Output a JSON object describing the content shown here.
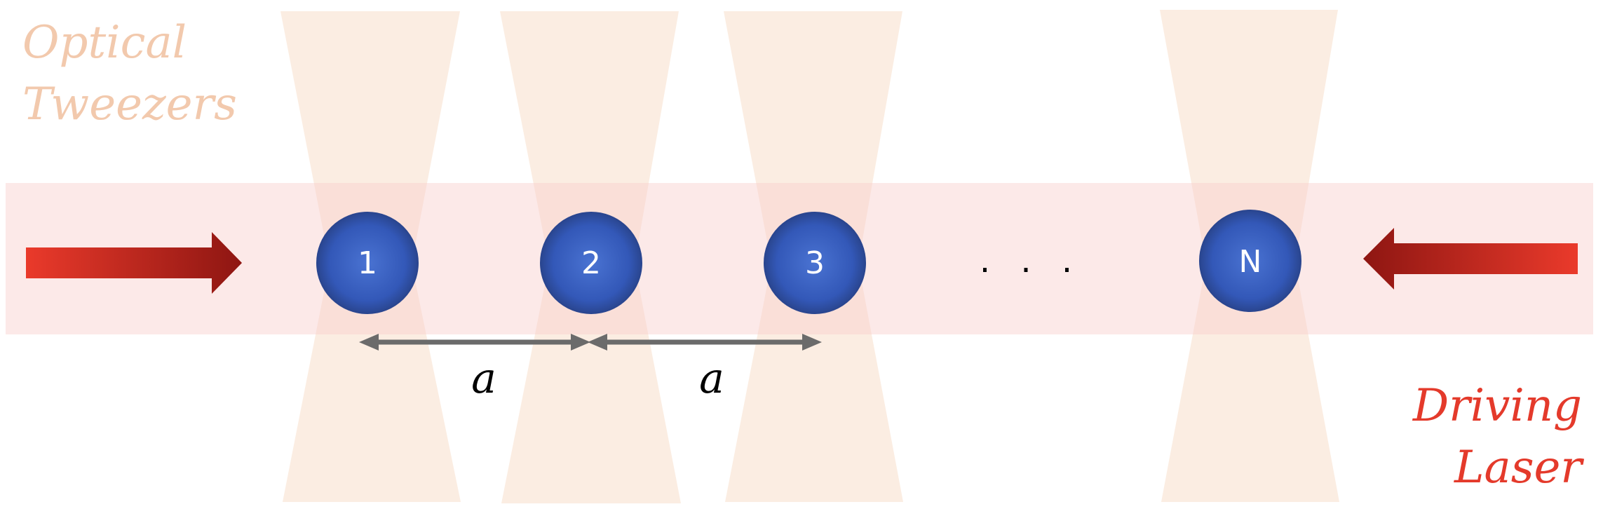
{
  "labels": {
    "optical_line1": "Optical",
    "optical_line2": "Tweezers",
    "driving_line1": "Driving",
    "driving_line2": "Laser",
    "ellipsis": ". . ."
  },
  "atoms": [
    {
      "label": "1"
    },
    {
      "label": "2"
    },
    {
      "label": "3"
    },
    {
      "label": "N"
    }
  ],
  "spacings": [
    {
      "label": "a"
    },
    {
      "label": "a"
    }
  ],
  "colors": {
    "tweezer_fill": "#f9e1cf",
    "laser_band": "#f8cfcb",
    "atom_center": "#4a73d2",
    "atom_edge": "#2a4690",
    "arrow_gray": "#6b6b6b",
    "laser_arrow_light": "#ea3a2b",
    "laser_arrow_dark": "#8e1612",
    "optical_text": "#f2c9ad",
    "driving_text": "#e43a2b"
  }
}
